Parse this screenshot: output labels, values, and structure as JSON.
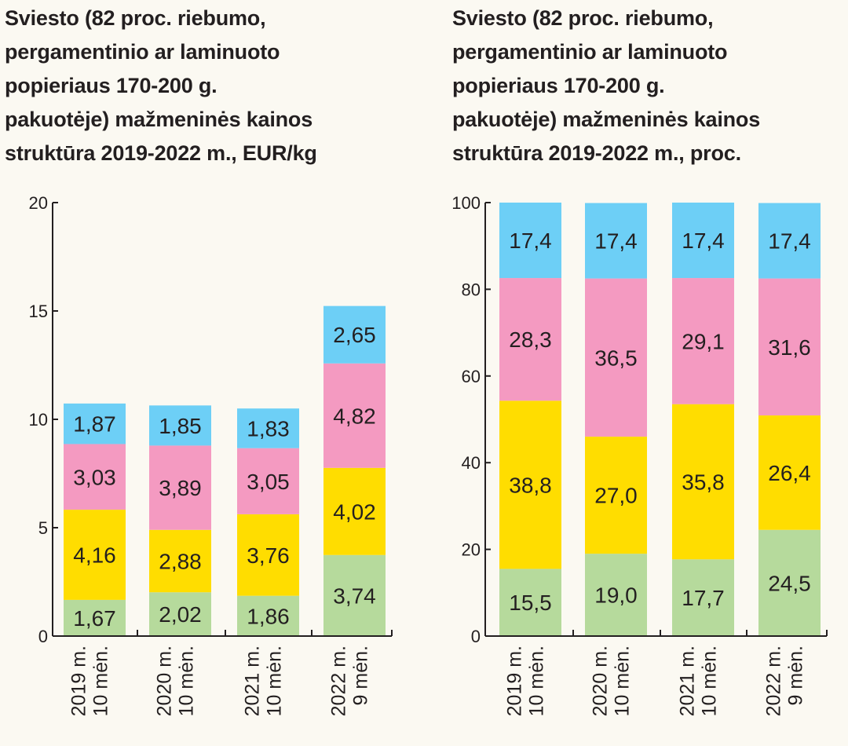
{
  "chart_data": [
    {
      "type": "bar",
      "stacked": true,
      "title_lines": [
        "Sviesto (82 proc. riebumo,",
        "pergamentinio ar laminuoto",
        "popieriaus 170-200 g.",
        "pakuotėje) mažmeninės kainos",
        "struktūra 2019-2022 m., EUR/kg"
      ],
      "categories": [
        [
          "2019 m.",
          "10 mėn."
        ],
        [
          "2020 m.",
          "10 mėn."
        ],
        [
          "2021 m.",
          "10 mėn."
        ],
        [
          "2022 m.",
          "9 mėn."
        ]
      ],
      "series": [
        {
          "name": "green",
          "color": "#b6da9c",
          "values": [
            1.67,
            2.02,
            1.86,
            3.74
          ],
          "labels": [
            "1,67",
            "2,02",
            "1,86",
            "3,74"
          ]
        },
        {
          "name": "yellow",
          "color": "#ffdd00",
          "values": [
            4.16,
            2.88,
            3.76,
            4.02
          ],
          "labels": [
            "4,16",
            "2,88",
            "3,76",
            "4,02"
          ]
        },
        {
          "name": "pink",
          "color": "#f49ac1",
          "values": [
            3.03,
            3.89,
            3.05,
            4.82
          ],
          "labels": [
            "3,03",
            "3,89",
            "3,05",
            "4,82"
          ]
        },
        {
          "name": "blue",
          "color": "#6dcff6",
          "values": [
            1.87,
            1.85,
            1.83,
            2.65
          ],
          "labels": [
            "1,87",
            "1,85",
            "1,83",
            "2,65"
          ]
        }
      ],
      "yticks": [
        "0",
        "5",
        "10",
        "15",
        "20"
      ],
      "ytick_values": [
        0,
        5,
        10,
        15,
        20
      ],
      "ylim": [
        0,
        20
      ],
      "xlabel": "",
      "ylabel": "",
      "grid": false
    },
    {
      "type": "bar",
      "stacked": true,
      "title_lines": [
        "Sviesto (82 proc. riebumo,",
        "pergamentinio ar laminuoto",
        "popieriaus 170-200 g.",
        "pakuotėje) mažmeninės kainos",
        "struktūra 2019-2022 m., proc."
      ],
      "categories": [
        [
          "2019 m.",
          "10 mėn."
        ],
        [
          "2020 m.",
          "10 mėn."
        ],
        [
          "2021 m.",
          "10 mėn."
        ],
        [
          "2022 m.",
          "9 mėn."
        ]
      ],
      "series": [
        {
          "name": "green",
          "color": "#b6da9c",
          "values": [
            15.5,
            19.0,
            17.7,
            24.5
          ],
          "labels": [
            "15,5",
            "19,0",
            "17,7",
            "24,5"
          ]
        },
        {
          "name": "yellow",
          "color": "#ffdd00",
          "values": [
            38.8,
            27.0,
            35.8,
            26.4
          ],
          "labels": [
            "38,8",
            "27,0",
            "35,8",
            "26,4"
          ]
        },
        {
          "name": "pink",
          "color": "#f49ac1",
          "values": [
            28.3,
            36.5,
            29.1,
            31.6
          ],
          "labels": [
            "28,3",
            "36,5",
            "29,1",
            "31,6"
          ]
        },
        {
          "name": "blue",
          "color": "#6dcff6",
          "values": [
            17.4,
            17.4,
            17.4,
            17.4
          ],
          "labels": [
            "17,4",
            "17,4",
            "17,4",
            "17,4"
          ]
        }
      ],
      "yticks": [
        "0",
        "20",
        "40",
        "60",
        "80",
        "100"
      ],
      "ytick_values": [
        0,
        20,
        40,
        60,
        80,
        100
      ],
      "ylim": [
        0,
        100
      ],
      "xlabel": "",
      "ylabel": "",
      "grid": false
    }
  ]
}
